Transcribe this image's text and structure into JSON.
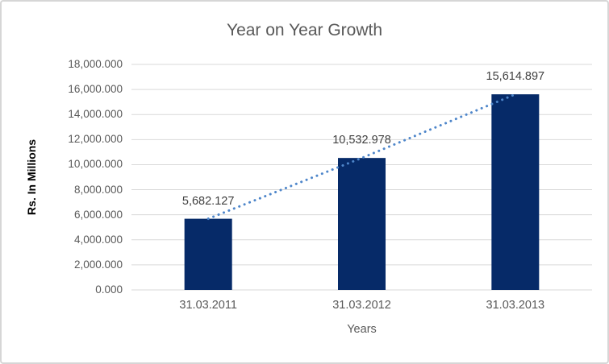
{
  "chart": {
    "title": "Year on Year Growth",
    "y_axis_title": "Rs. In Millions",
    "x_axis_title": "Years"
  },
  "chart_data": {
    "type": "bar",
    "title": "Year on Year Growth",
    "xlabel": "Years",
    "ylabel": "Rs. In Millions",
    "categories": [
      "31.03.2011",
      "31.03.2012",
      "31.03.2013"
    ],
    "values": [
      5682.127,
      10532.978,
      15614.897
    ],
    "data_labels": [
      "5,682.127",
      "10,532.978",
      "15,614.897"
    ],
    "y_ticks": [
      "0.000",
      "2,000.000",
      "4,000.000",
      "6,000.000",
      "8,000.000",
      "10,000.000",
      "12,000.000",
      "14,000.000",
      "16,000.000",
      "18,000.000"
    ],
    "ylim": [
      0,
      18000
    ],
    "y_tick_step": 2000,
    "grid": true,
    "legend_position": "none",
    "trendline": {
      "type": "linear",
      "style": "dotted"
    },
    "colors": {
      "bar": "#062A68",
      "trendline": "#4E86CA",
      "gridline": "#D9D9D9",
      "axis_text": "#595959",
      "data_label": "#404040",
      "title": "#595959",
      "border": "#D6D6D6",
      "background": "#FFFFFF"
    }
  }
}
